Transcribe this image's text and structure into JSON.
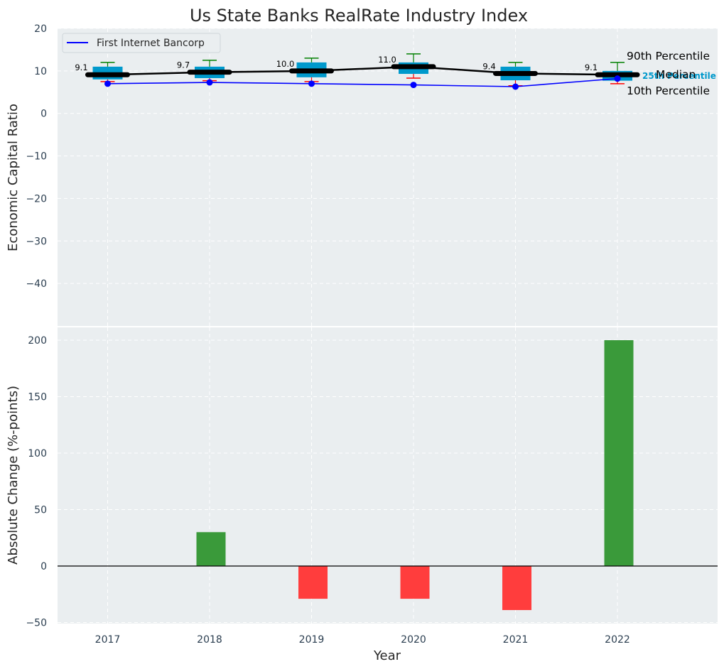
{
  "chart_data": [
    {
      "type": "box",
      "title": "Us State Banks RealRate Industry Index",
      "xlabel": "",
      "ylabel": "Economic Capital Ratio",
      "ylim": [
        -50,
        20
      ],
      "yticks": [
        20,
        10,
        0,
        -10,
        -20,
        -30,
        -40
      ],
      "ytick_labels": [
        "20",
        "10",
        "0",
        "−10",
        "−20",
        "−30",
        "−40"
      ],
      "categories": [
        "2017",
        "2018",
        "2019",
        "2020",
        "2021",
        "2022"
      ],
      "grid": true,
      "legend_position": "upper-left",
      "boxes": [
        {
          "p10": 7.5,
          "q1": 8.0,
          "median": 9.1,
          "q3": 11.0,
          "p90": 12.0
        },
        {
          "p10": 7.7,
          "q1": 8.3,
          "median": 9.7,
          "q3": 11.0,
          "p90": 12.5
        },
        {
          "p10": 7.5,
          "q1": 8.5,
          "median": 10.0,
          "q3": 12.0,
          "p90": 13.0
        },
        {
          "p10": 8.3,
          "q1": 9.3,
          "median": 11.0,
          "q3": 12.0,
          "p90": 14.0
        },
        {
          "p10": 6.5,
          "q1": 7.8,
          "median": 9.4,
          "q3": 11.0,
          "p90": 12.0
        },
        {
          "p10": 7.0,
          "q1": 7.7,
          "median": 9.1,
          "q3": 10.0,
          "p90": 12.0
        }
      ],
      "median_labels": [
        "9.1",
        "9.7",
        "10.0",
        "11.0",
        "9.4",
        "9.1"
      ],
      "series": [
        {
          "name": "First Internet Bancorp",
          "values": [
            7.0,
            7.3,
            7.0,
            6.7,
            6.3,
            8.2
          ],
          "color": "#0000ff"
        }
      ],
      "annotations": {
        "p90": "90th Percentile",
        "median": "Median",
        "p25": "25th Percentile",
        "p10": "10th Percentile"
      },
      "colors": {
        "box": "#0099cc",
        "median_line": "#000000",
        "whisker_top": "#008000",
        "whisker_bottom": "#ff0000",
        "plot_bg": "#eaeef0"
      }
    },
    {
      "type": "bar",
      "title": "",
      "xlabel": "Year",
      "ylabel": "Absolute Change (%-points)",
      "ylim": [
        -50,
        220
      ],
      "yticks": [
        200,
        150,
        100,
        50,
        0,
        -50
      ],
      "ytick_labels": [
        "200",
        "150",
        "100",
        "50",
        "0",
        "−50"
      ],
      "categories": [
        "2017",
        "2018",
        "2019",
        "2020",
        "2021",
        "2022"
      ],
      "values": [
        0,
        30,
        -29,
        -29,
        -39,
        200
      ],
      "grid": true,
      "colors": {
        "positive": "#3a9a3a",
        "negative": "#ff3d3d"
      }
    }
  ]
}
